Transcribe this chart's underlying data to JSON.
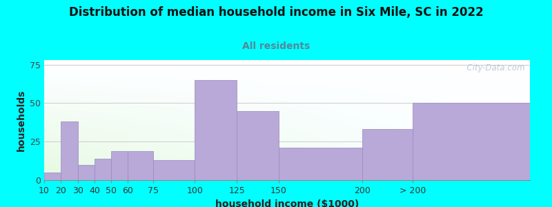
{
  "title": "Distribution of median household income in Six Mile, SC in 2022",
  "subtitle": "All residents",
  "xlabel": "household income ($1000)",
  "ylabel": "households",
  "bar_values": [
    5,
    38,
    10,
    14,
    19,
    19,
    13,
    65,
    45,
    21,
    33,
    50
  ],
  "bar_lefts": [
    10,
    20,
    30,
    40,
    50,
    60,
    75,
    100,
    125,
    150,
    200,
    230
  ],
  "bar_widths": [
    10,
    10,
    10,
    10,
    10,
    15,
    25,
    25,
    25,
    50,
    30,
    70
  ],
  "bar_color": "#b8a9d9",
  "bar_edge_color": "#9988bb",
  "bg_color": "#00FFFF",
  "ylim": [
    0,
    78
  ],
  "yticks": [
    0,
    25,
    50,
    75
  ],
  "xlim": [
    10,
    300
  ],
  "xtick_positions": [
    10,
    20,
    30,
    40,
    50,
    60,
    75,
    100,
    125,
    150,
    200,
    230
  ],
  "xtick_labels": [
    "10",
    "20",
    "30",
    "40",
    "50",
    "60",
    "75",
    "100",
    "125",
    "150",
    "200",
    "> 200"
  ],
  "title_fontsize": 12,
  "subtitle_fontsize": 10,
  "axis_label_fontsize": 10,
  "tick_fontsize": 9,
  "watermark_text": "  City-Data.com",
  "grid_color": "#cccccc",
  "title_color": "#111111",
  "subtitle_color": "#558899"
}
